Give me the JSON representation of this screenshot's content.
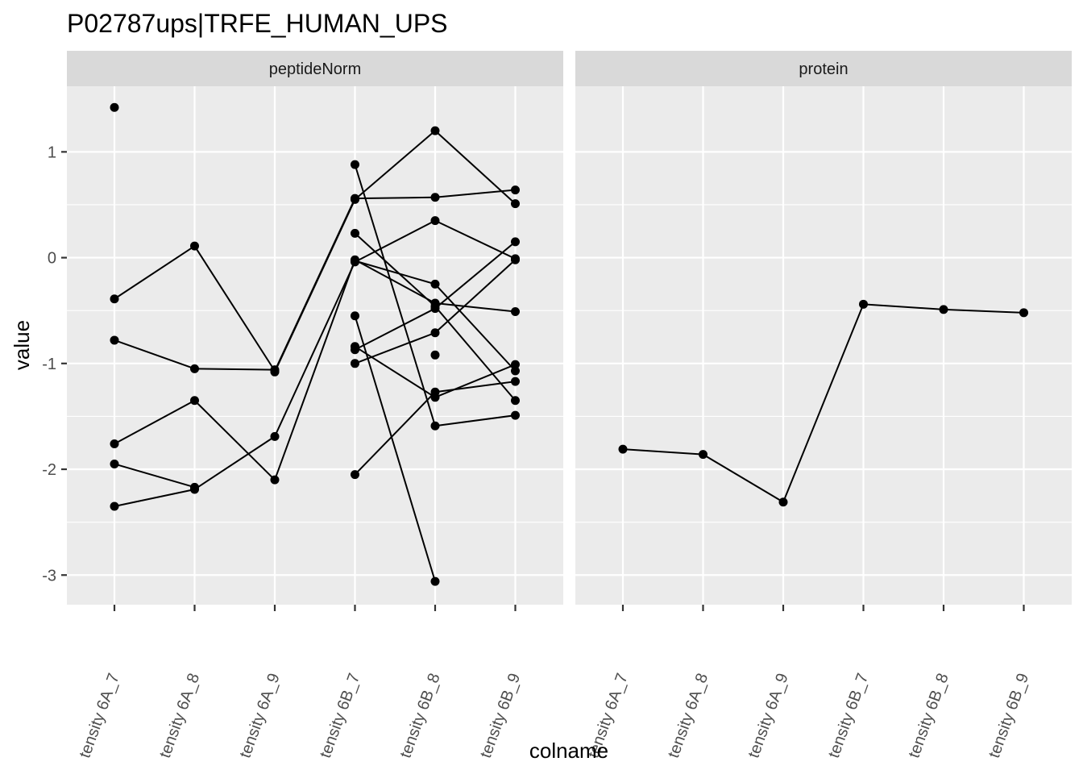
{
  "chart_data": {
    "type": "line",
    "title": "P02787ups|TRFE_HUMAN_UPS",
    "xlabel": "colname",
    "ylabel": "value",
    "categories": [
      "tensity 6A_7",
      "tensity 6A_8",
      "tensity 6A_9",
      "tensity 6B_7",
      "tensity 6B_8",
      "tensity 6B_9"
    ],
    "ylim": [
      -3.28,
      1.62
    ],
    "yticks": [
      -3,
      -2,
      -1,
      0,
      1
    ],
    "ytick_labels": [
      "-3",
      "-2",
      "-1",
      "0",
      "1"
    ],
    "grid": true,
    "legend": "none",
    "panels": [
      {
        "label": "peptideNorm",
        "series": [
          {
            "values": [
              1.42,
              null,
              null,
              null,
              null,
              null
            ]
          },
          {
            "values": [
              -0.39,
              0.11,
              -1.07,
              0.56,
              0.57,
              0.64
            ]
          },
          {
            "values": [
              -0.78,
              -1.05,
              -1.06,
              null,
              null,
              null
            ]
          },
          {
            "values": [
              -1.76,
              -1.35,
              -2.1,
              -0.02,
              -0.43,
              -0.51
            ]
          },
          {
            "values": [
              -1.95,
              -2.17,
              null,
              null,
              null,
              null
            ]
          },
          {
            "values": [
              -2.35,
              -2.19,
              -1.69,
              -0.04,
              0.35,
              -0.01
            ]
          },
          {
            "values": [
              null,
              null,
              -1.08,
              0.55,
              1.2,
              0.51
            ]
          },
          {
            "values": [
              null,
              null,
              null,
              0.88,
              -1.59,
              -1.49
            ]
          },
          {
            "values": [
              null,
              null,
              null,
              0.23,
              -0.46,
              -1.35
            ]
          },
          {
            "values": [
              null,
              null,
              null,
              -0.55,
              -3.06,
              null
            ]
          },
          {
            "values": [
              null,
              null,
              null,
              -0.84,
              -1.32,
              -1.01
            ]
          },
          {
            "values": [
              null,
              null,
              null,
              -0.87,
              -0.48,
              0.15
            ]
          },
          {
            "values": [
              null,
              null,
              null,
              -1.0,
              -0.71,
              -0.02
            ]
          },
          {
            "values": [
              null,
              null,
              null,
              -2.05,
              -1.27,
              -1.17
            ]
          },
          {
            "values": [
              null,
              null,
              null,
              -0.03,
              -0.25,
              -1.07
            ]
          },
          {
            "values": [
              null,
              null,
              null,
              null,
              -0.92,
              null
            ]
          }
        ]
      },
      {
        "label": "protein",
        "series": [
          {
            "values": [
              -1.81,
              -1.86,
              -2.31,
              -0.44,
              -0.49,
              -0.52
            ]
          }
        ]
      }
    ]
  }
}
